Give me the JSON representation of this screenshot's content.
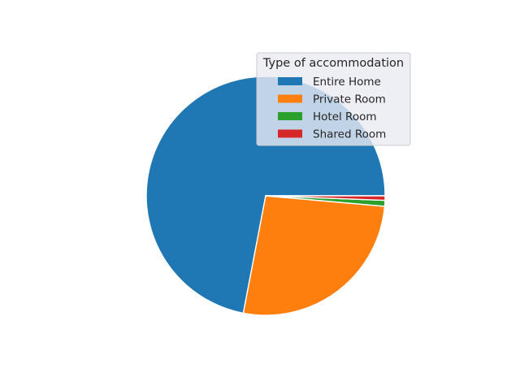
{
  "chart_data": {
    "type": "pie",
    "title": "",
    "categories": [
      "Entire Home",
      "Private Room",
      "Hotel Room",
      "Shared Room"
    ],
    "values": [
      72.0,
      26.6,
      0.8,
      0.6
    ],
    "colors": [
      "#1f77b4",
      "#ff7f0e",
      "#2ca02c",
      "#d62728"
    ],
    "start_angle_deg": 0,
    "direction": "counterclockwise",
    "legend": {
      "title": "Type of accommodation",
      "placement": "upper-right"
    }
  }
}
